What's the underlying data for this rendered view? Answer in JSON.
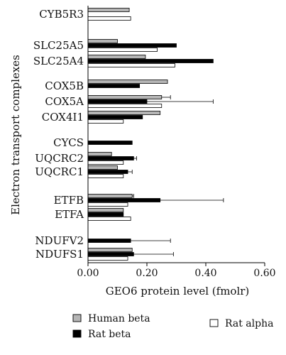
{
  "chart_data": {
    "type": "bar",
    "orientation": "horizontal",
    "title": "",
    "xlabel": "GEO6 protein level (fmolr)",
    "ylabel": "Electron transport complexes",
    "xlim": [
      0,
      0.6
    ],
    "xticks": [
      "0.00",
      "0.20",
      "0.40",
      "0.60"
    ],
    "grid": false,
    "legend_position": "bottom",
    "series": [
      {
        "name": "Human beta",
        "color": "#b5b5b5"
      },
      {
        "name": "Rat beta",
        "color": "#000000"
      },
      {
        "name": "Rat alpha",
        "color": "#ffffff"
      }
    ],
    "categories": [
      {
        "label": "CYB5R3",
        "values": [
          0.14,
          null,
          0.145
        ],
        "errors": [
          null,
          null,
          null
        ]
      },
      {
        "label": "SLC25A5",
        "values": [
          0.1,
          0.3,
          0.235
        ],
        "errors": [
          null,
          null,
          null
        ]
      },
      {
        "label": "SLC25A4",
        "values": [
          0.195,
          0.425,
          0.295
        ],
        "errors": [
          null,
          null,
          null
        ]
      },
      {
        "label": "COX5B",
        "values": [
          0.27,
          0.175,
          null
        ],
        "errors": [
          null,
          null,
          null
        ]
      },
      {
        "label": "COX5A",
        "values": [
          0.25,
          0.2,
          0.25
        ],
        "errors": [
          0.03,
          0.225,
          null
        ]
      },
      {
        "label": "COX4I1",
        "values": [
          0.245,
          0.185,
          0.12
        ],
        "errors": [
          null,
          null,
          null
        ]
      },
      {
        "label": "CYCS",
        "values": [
          null,
          0.15,
          null
        ],
        "errors": [
          null,
          null,
          null
        ]
      },
      {
        "label": "UQCRC2",
        "values": [
          0.08,
          0.155,
          0.12
        ],
        "errors": [
          null,
          0.01,
          null
        ]
      },
      {
        "label": "UQCRC1",
        "values": [
          0.1,
          0.135,
          0.12
        ],
        "errors": [
          null,
          0.015,
          null
        ]
      },
      {
        "label": "ETFB",
        "values": [
          0.15,
          0.245,
          0.135
        ],
        "errors": [
          0.005,
          0.215,
          null
        ]
      },
      {
        "label": "ETFA",
        "values": [
          0.12,
          0.12,
          0.145
        ],
        "errors": [
          null,
          null,
          null
        ]
      },
      {
        "label": "NDUFV2",
        "values": [
          null,
          0.145,
          null
        ],
        "errors": [
          null,
          0.135,
          null
        ]
      },
      {
        "label": "NDUFS1",
        "values": [
          0.15,
          0.155,
          0.135
        ],
        "errors": [
          null,
          0.135,
          null
        ]
      }
    ]
  }
}
